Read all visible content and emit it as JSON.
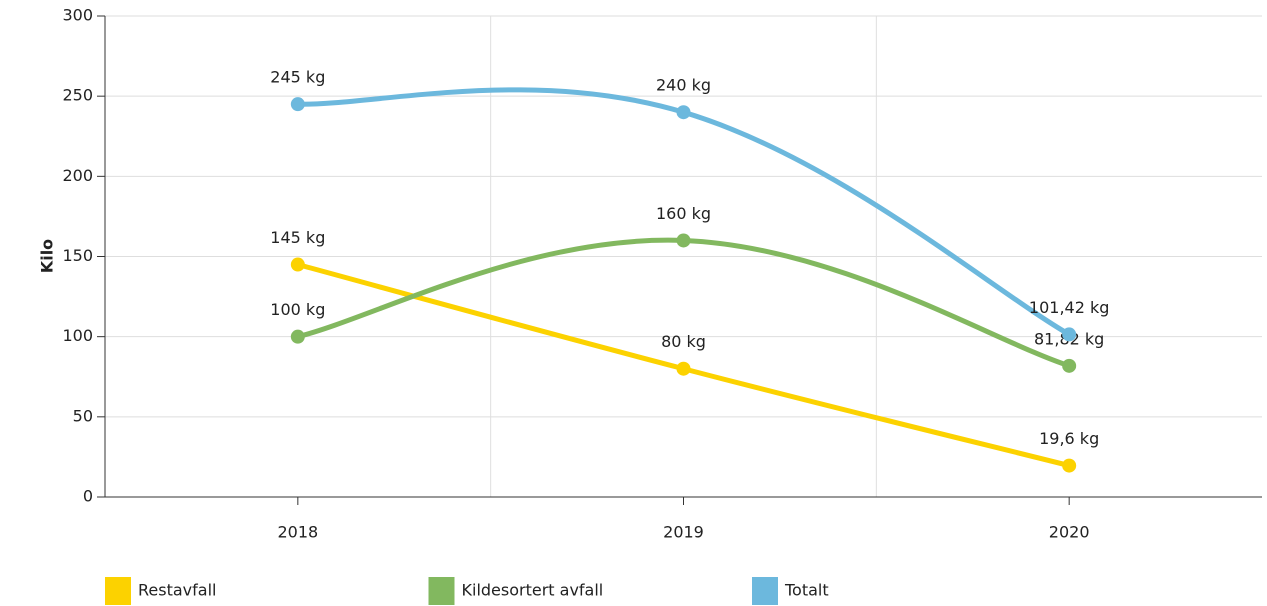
{
  "chart_data": {
    "type": "line",
    "y_label": "Kilo",
    "categories": [
      "2018",
      "2019",
      "2020"
    ],
    "series": [
      {
        "name": "Restavfall",
        "color": "#fcd200",
        "values": [
          145,
          80,
          19.6
        ],
        "value_labels": [
          "145 kg",
          "80 kg",
          "19,6 kg"
        ]
      },
      {
        "name": "Kildesortert avfall",
        "color": "#82b85f",
        "values": [
          100,
          160,
          81.82
        ],
        "value_labels": [
          "100 kg",
          "160 kg",
          "81,82 kg"
        ]
      },
      {
        "name": "Totalt",
        "color": "#6cb8dd",
        "values": [
          245,
          240,
          101.42
        ],
        "value_labels": [
          "245 kg",
          "240 kg",
          "101,42 kg"
        ]
      }
    ],
    "ylim": [
      0,
      300
    ],
    "yticks": [
      0,
      50,
      100,
      150,
      200,
      250,
      300
    ],
    "grid": true,
    "legend": "bottom"
  }
}
